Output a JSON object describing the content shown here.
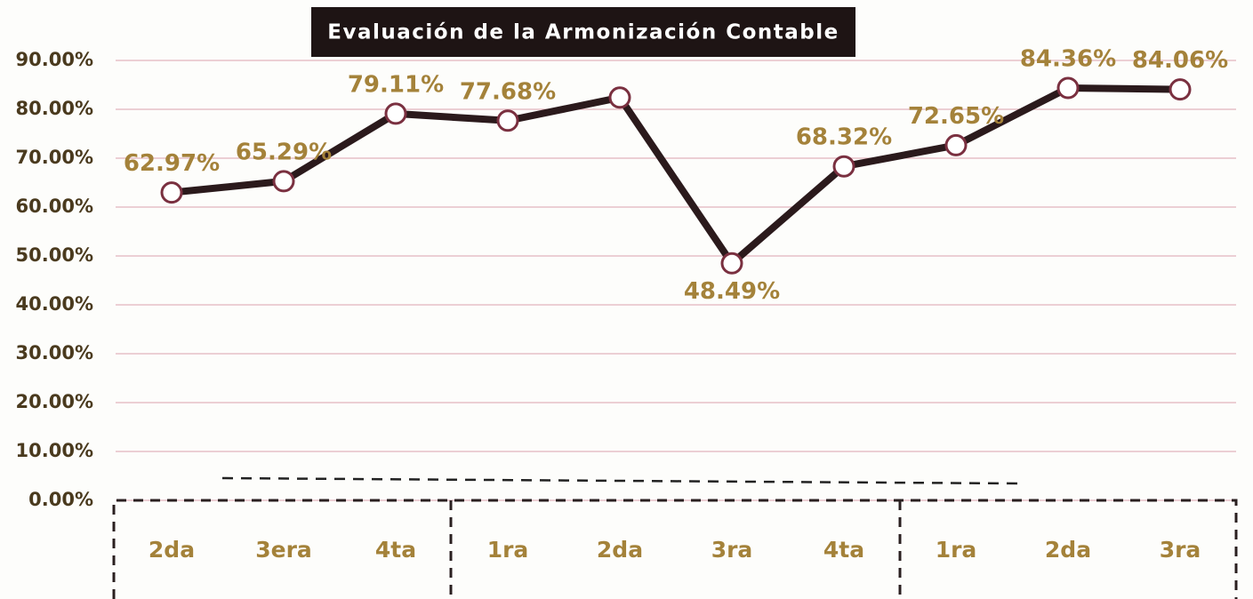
{
  "chart_data": {
    "type": "line",
    "title": "Evaluación de la Armonización Contable",
    "categories": [
      "2da",
      "3era",
      "4ta",
      "1ra",
      "2da",
      "3ra",
      "4ta",
      "1ra",
      "2da",
      "3ra"
    ],
    "values": [
      62.97,
      65.29,
      79.11,
      77.68,
      82.4,
      48.49,
      68.32,
      72.65,
      84.36,
      84.06
    ],
    "value_labels": [
      "62.97%",
      "65.29%",
      "79.11%",
      "77.68%",
      null,
      "48.49%",
      "68.32%",
      "72.65%",
      "84.36%",
      "84.06%"
    ],
    "color": "#2b1a1c",
    "ylim": [
      0,
      90
    ],
    "yticks": [
      {
        "value": 0,
        "label": "0.00%"
      },
      {
        "value": 10,
        "label": "10.00%"
      },
      {
        "value": 20,
        "label": "20.00%"
      },
      {
        "value": 30,
        "label": "30.00%"
      },
      {
        "value": 40,
        "label": "40.00%"
      },
      {
        "value": 50,
        "label": "50.00%"
      },
      {
        "value": 60,
        "label": "60.00%"
      },
      {
        "value": 70,
        "label": "70.00%"
      },
      {
        "value": 80,
        "label": "80.00%"
      },
      {
        "value": 90,
        "label": "90.00%"
      }
    ],
    "grid": true
  }
}
